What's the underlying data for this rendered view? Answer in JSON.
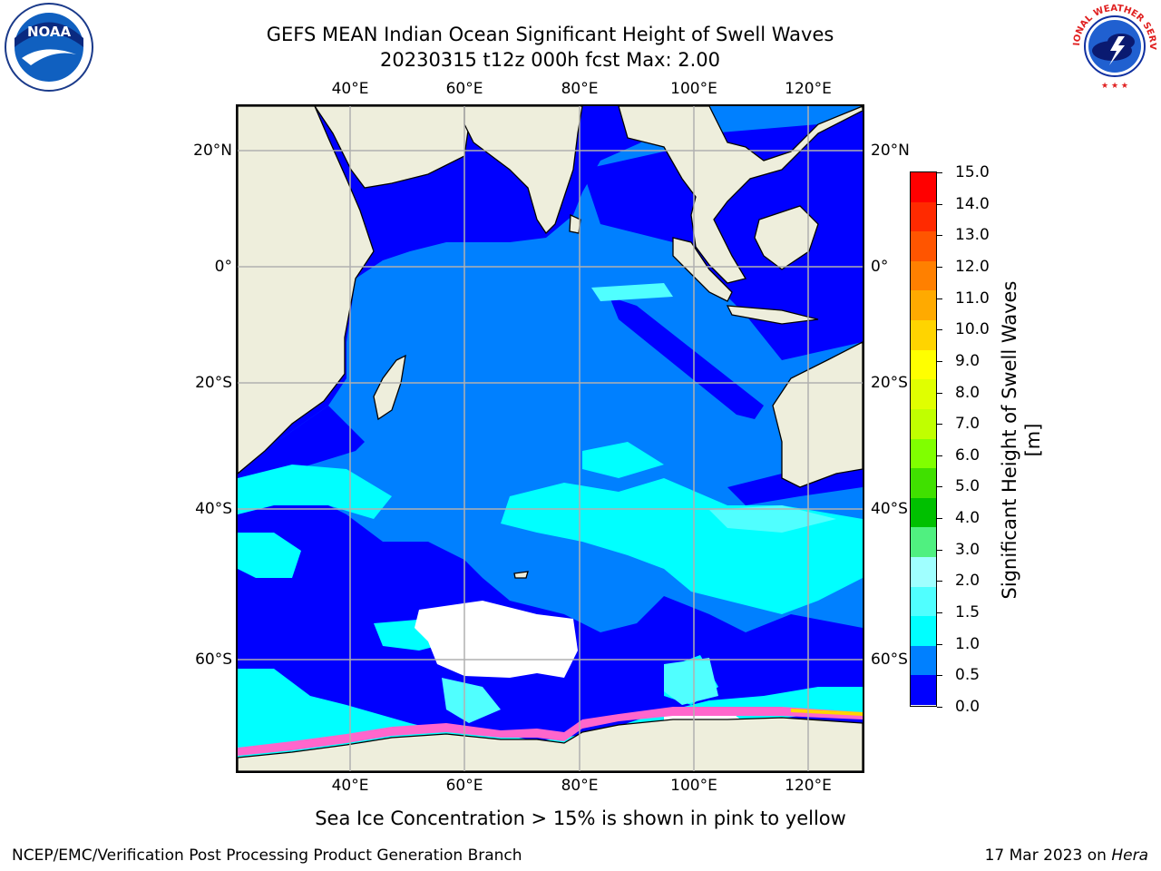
{
  "header": {
    "title_line1": "GEFS MEAN Indian Ocean Significant Height of Swell Waves",
    "title_line2": "20230315 t12z 000h fcst   Max: 2.00"
  },
  "logos": {
    "left": {
      "icon": "noaa-logo",
      "text": "NOAA"
    },
    "right": {
      "icon": "nws-logo",
      "text": "NATIONAL WEATHER SERVICE"
    }
  },
  "axes": {
    "lon_labels": [
      "40°E",
      "60°E",
      "80°E",
      "100°E",
      "120°E"
    ],
    "lat_labels_left": [
      "20°N",
      "0°",
      "20°S",
      "40°S",
      "60°S"
    ],
    "lat_labels_right": [
      "20°N",
      "0°",
      "20°S",
      "40°S",
      "60°S"
    ]
  },
  "colorbar": {
    "title": "Significant Height of Swell Waves [m]",
    "labels": [
      "15.0",
      "14.0",
      "13.0",
      "12.0",
      "11.0",
      "10.0",
      "9.0",
      "8.0",
      "7.0",
      "6.0",
      "5.0",
      "4.0",
      "3.0",
      "2.0",
      "1.5",
      "1.0",
      "0.5",
      "0.0"
    ],
    "colors": [
      "#ff0000",
      "#ff2a00",
      "#ff5500",
      "#ff8000",
      "#ffaa00",
      "#ffd400",
      "#ffff00",
      "#e0ff00",
      "#c0ff00",
      "#80ff00",
      "#40e000",
      "#00c000",
      "#50f080",
      "#a0ffff",
      "#50ffff",
      "#00ffff",
      "#0080ff",
      "#0000ff"
    ]
  },
  "map_colors": {
    "land": "#eeeedc",
    "ice_shelf": "#ffffff",
    "sea_ice": "#ff66cc",
    "grid": "#b0b0b0"
  },
  "footer": {
    "note": "Sea Ice Concentration > 15% is shown in pink to yellow",
    "credit": "NCEP/EMC/Verification Post Processing Product Generation Branch",
    "date": "17 Mar 2023 on ",
    "host": "Hera"
  }
}
